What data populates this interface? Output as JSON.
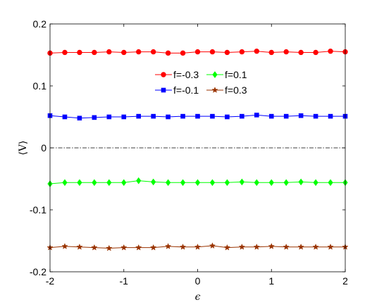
{
  "chart_data": {
    "type": "line",
    "xlabel": "ϵ",
    "ylabel": "⟨V⟩",
    "xlim": [
      -2,
      2
    ],
    "ylim": [
      -0.2,
      0.2
    ],
    "x_ticks": [
      -2,
      -1,
      0,
      1,
      2
    ],
    "y_ticks": [
      -0.2,
      -0.1,
      0,
      0.1,
      0.2
    ],
    "x_tick_labels": [
      "-2",
      "-1",
      "0",
      "1",
      "2"
    ],
    "y_tick_labels": [
      "-0.2",
      "-0.1",
      "0",
      "0.1",
      "0.2"
    ],
    "grid": false,
    "legend_position": "top-center",
    "reference_line": {
      "y": 0,
      "style": "dash-dot",
      "color": "#000000"
    },
    "x": [
      -2.0,
      -1.8,
      -1.6,
      -1.4,
      -1.2,
      -1.0,
      -0.8,
      -0.6,
      -0.4,
      -0.2,
      0.0,
      0.2,
      0.4,
      0.6,
      0.8,
      1.0,
      1.2,
      1.4,
      1.6,
      1.8,
      2.0
    ],
    "series": [
      {
        "name": "f=-0.3",
        "color": "#ff0000",
        "marker": "circle",
        "values": [
          0.153,
          0.154,
          0.154,
          0.154,
          0.155,
          0.154,
          0.155,
          0.155,
          0.153,
          0.153,
          0.155,
          0.155,
          0.154,
          0.155,
          0.156,
          0.154,
          0.155,
          0.154,
          0.154,
          0.156,
          0.155
        ]
      },
      {
        "name": "f=-0.1",
        "color": "#0000ff",
        "marker": "square",
        "values": [
          0.052,
          0.05,
          0.048,
          0.049,
          0.05,
          0.05,
          0.051,
          0.051,
          0.05,
          0.051,
          0.051,
          0.051,
          0.05,
          0.051,
          0.053,
          0.051,
          0.051,
          0.052,
          0.051,
          0.051,
          0.051
        ]
      },
      {
        "name": "f=0.1",
        "color": "#00ff00",
        "marker": "diamond",
        "values": [
          -0.058,
          -0.056,
          -0.056,
          -0.056,
          -0.056,
          -0.056,
          -0.053,
          -0.055,
          -0.056,
          -0.056,
          -0.056,
          -0.056,
          -0.056,
          -0.055,
          -0.056,
          -0.056,
          -0.056,
          -0.055,
          -0.056,
          -0.056,
          -0.056
        ]
      },
      {
        "name": "f=0.3",
        "color": "#993300",
        "marker": "star",
        "values": [
          -0.161,
          -0.159,
          -0.16,
          -0.161,
          -0.162,
          -0.161,
          -0.161,
          -0.161,
          -0.159,
          -0.16,
          -0.16,
          -0.158,
          -0.161,
          -0.16,
          -0.16,
          -0.159,
          -0.16,
          -0.16,
          -0.16,
          -0.16,
          -0.16
        ]
      }
    ]
  }
}
